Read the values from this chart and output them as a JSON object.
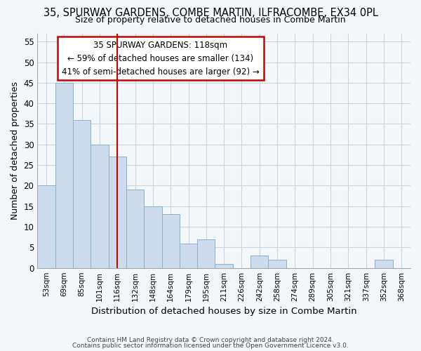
{
  "title_line1": "35, SPURWAY GARDENS, COMBE MARTIN, ILFRACOMBE, EX34 0PL",
  "title_line2": "Size of property relative to detached houses in Combe Martin",
  "xlabel": "Distribution of detached houses by size in Combe Martin",
  "ylabel": "Number of detached properties",
  "categories": [
    "53sqm",
    "69sqm",
    "85sqm",
    "101sqm",
    "116sqm",
    "132sqm",
    "148sqm",
    "164sqm",
    "179sqm",
    "195sqm",
    "211sqm",
    "226sqm",
    "242sqm",
    "258sqm",
    "274sqm",
    "289sqm",
    "305sqm",
    "321sqm",
    "337sqm",
    "352sqm",
    "368sqm"
  ],
  "values": [
    20,
    45,
    36,
    30,
    27,
    19,
    15,
    13,
    6,
    7,
    1,
    0,
    3,
    2,
    0,
    0,
    0,
    0,
    0,
    2,
    0
  ],
  "bar_color": "#ccdcec",
  "bar_edge_color": "#8ab0cc",
  "property_bin_index": 4,
  "annotation_line1": "35 SPURWAY GARDENS: 118sqm",
  "annotation_line2": "← 59% of detached houses are smaller (134)",
  "annotation_line3": "41% of semi-detached houses are larger (92) →",
  "annotation_box_color": "white",
  "annotation_box_edge_color": "#cc0000",
  "vline_color": "#cc0000",
  "ylim": [
    0,
    57
  ],
  "yticks": [
    0,
    5,
    10,
    15,
    20,
    25,
    30,
    35,
    40,
    45,
    50,
    55
  ],
  "footer_line1": "Contains HM Land Registry data © Crown copyright and database right 2024.",
  "footer_line2": "Contains public sector information licensed under the Open Government Licence v3.0.",
  "bg_color": "#f4f7fa",
  "plot_bg_color": "#f4f7fa",
  "grid_color": "#c8d4e0"
}
